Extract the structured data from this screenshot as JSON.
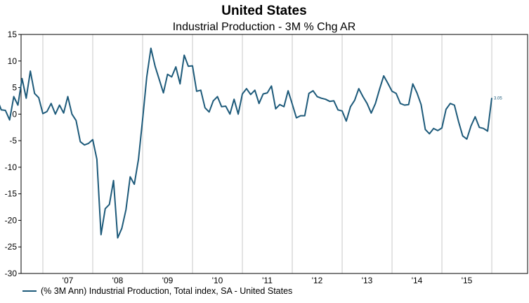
{
  "chart_data": {
    "type": "line",
    "title": "United States",
    "subtitle": "Industrial Production - 3M % Chg AR",
    "xlabel": "",
    "ylabel": "",
    "ylim": [
      -30,
      15
    ],
    "yticks": [
      15,
      10,
      5,
      0,
      -5,
      -10,
      -15,
      -20,
      -25,
      -30
    ],
    "xticks": [
      "'07",
      "'08",
      "'09",
      "'10",
      "'11",
      "'12",
      "'13",
      "'14",
      "'15"
    ],
    "grid": "vertical",
    "legend_position": "bottom-left",
    "end_label": "3.05",
    "colors": {
      "line": "#1d5a7a",
      "grid": "#c8c8c8",
      "frame": "#000000"
    },
    "series": [
      {
        "name": "(% 3M Ann) Industrial Production, Total index, SA - United States",
        "start": "2006-01",
        "frequency": "monthly",
        "values": [
          1.0,
          2.9,
          0.8,
          0.7,
          -1.1,
          3.3,
          1.7,
          6.7,
          3.0,
          8.1,
          3.9,
          3.1,
          0.1,
          0.5,
          2.0,
          0.0,
          1.7,
          0.2,
          3.3,
          0.0,
          -1.2,
          -5.2,
          -5.8,
          -5.5,
          -4.8,
          -8.5,
          -22.7,
          -17.8,
          -17.0,
          -12.5,
          -23.3,
          -21.5,
          -18.0,
          -11.8,
          -13.2,
          -8.5,
          -1.0,
          7.0,
          12.4,
          9.0,
          6.5,
          4.0,
          7.5,
          7.0,
          8.9,
          5.7,
          11.1,
          9.0,
          9.1,
          4.3,
          4.5,
          1.2,
          0.4,
          2.5,
          3.3,
          1.4,
          1.5,
          0.0,
          2.8,
          0.0,
          3.8,
          4.8,
          3.7,
          4.5,
          2.0,
          3.8,
          4.0,
          5.3,
          1.0,
          1.8,
          1.4,
          4.4,
          1.9,
          -0.7,
          -0.3,
          -0.3,
          3.9,
          4.4,
          3.3,
          3.0,
          2.8,
          2.4,
          2.5,
          0.8,
          0.6,
          -1.3,
          1.4,
          2.6,
          4.8,
          3.3,
          2.0,
          0.2,
          2.0,
          4.7,
          7.2,
          5.8,
          4.3,
          3.9,
          2.0,
          1.7,
          1.8,
          5.7,
          4.0,
          1.8,
          -2.9,
          -3.7,
          -2.7,
          -3.1,
          -2.6,
          0.9,
          2.0,
          1.7,
          -1.4,
          -4.1,
          -4.7,
          -2.2,
          -0.5,
          -2.5,
          -2.7,
          -3.2,
          3.05
        ]
      }
    ]
  }
}
